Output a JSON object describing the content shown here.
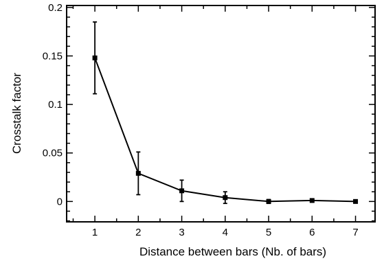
{
  "chart_data": {
    "type": "line",
    "title": "",
    "xlabel": "Distance between bars (Nb. of bars)",
    "ylabel": "Crosstalk factor",
    "xlim": [
      0.35,
      7.45
    ],
    "ylim": [
      -0.021,
      0.202
    ],
    "x_ticks": [
      "1",
      "2",
      "3",
      "4",
      "5",
      "6",
      "7"
    ],
    "y_ticks": [
      "0",
      "0.05",
      "0.1",
      "0.15",
      "0.2"
    ],
    "grid": false,
    "legend": "none",
    "series": [
      {
        "x": [
          1,
          2,
          3,
          4,
          5,
          6,
          7
        ],
        "values": [
          0.148,
          0.029,
          0.011,
          0.004,
          0.0,
          0.001,
          0.0
        ],
        "error": [
          0.037,
          0.022,
          0.011,
          0.006,
          0.002,
          0.0015,
          0.0015
        ],
        "marker": "square",
        "color": "#000000"
      }
    ]
  }
}
